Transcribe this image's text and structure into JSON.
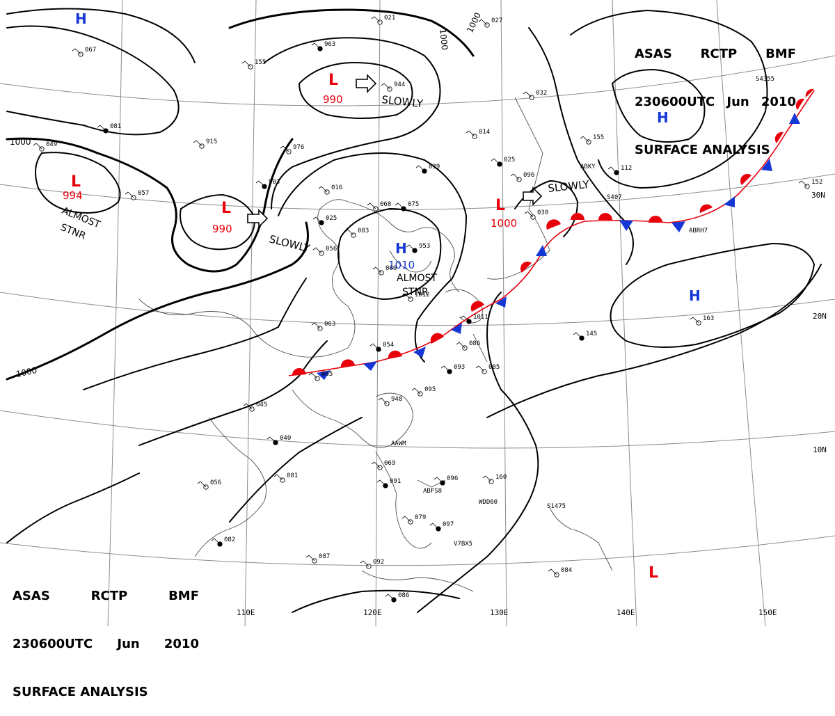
{
  "header": {
    "line1": [
      "ASAS",
      "RCTP",
      "BMF"
    ],
    "line2": [
      "230600UTC",
      "Jun",
      "2010"
    ],
    "line3": "SURFACE ANALYSIS"
  },
  "colors": {
    "low": "#e8000b",
    "high": "#1537d6",
    "isobar": "#000000",
    "graticule": "#8c8c8c",
    "coast": "#505050"
  },
  "longitude_labels": [
    "110E",
    "120E",
    "130E",
    "140E",
    "150E"
  ],
  "latitude_labels": [
    "30N",
    "20N",
    "10N"
  ],
  "isobar_labels": [
    "1000",
    "1000",
    "1000",
    "1000"
  ],
  "pressure_systems": [
    {
      "type": "L",
      "value": "994",
      "note": "ALMOST STNR"
    },
    {
      "type": "L",
      "value": "990",
      "note": "SLOWLY"
    },
    {
      "type": "L",
      "value": "990",
      "note": "SLOWLY"
    },
    {
      "type": "L",
      "value": "1000",
      "note": "SLOWLY"
    },
    {
      "type": "H",
      "value": "1010",
      "note": "ALMOST STNR"
    },
    {
      "type": "H",
      "value": "",
      "note": ""
    },
    {
      "type": "H",
      "value": "",
      "note": ""
    },
    {
      "type": "H",
      "value": "",
      "note": ""
    },
    {
      "type": "L",
      "value": "",
      "note": ""
    }
  ],
  "motion_labels": [
    "SLOWLY",
    "SLOWLY",
    "SLOWLY",
    "ALMOST",
    "STNR",
    "ALMOST",
    "STNR"
  ],
  "front": {
    "type": "stationary"
  },
  "station_labels": [
    "ABKY",
    "S407",
    "ABRH7",
    "V7BX5",
    "WDD60",
    "ABFS8",
    "S1475",
    "AAWM",
    "S4355"
  ],
  "station_values": [
    "963",
    "944",
    "915",
    "903",
    "976",
    "016",
    "025",
    "056",
    "068",
    "075",
    "083",
    "089",
    "039",
    "021",
    "014",
    "025",
    "030",
    "032",
    "112",
    "155",
    "152",
    "145",
    "163",
    "086",
    "093",
    "085",
    "095",
    "096",
    "160",
    "079",
    "091",
    "069",
    "081",
    "082",
    "087",
    "092",
    "086",
    "084",
    "085",
    "054",
    "063",
    "045",
    "040",
    "056",
    "067",
    "081",
    "057",
    "049",
    "953",
    "948",
    "096",
    "097",
    "155",
    "027",
    "1011",
    "1012"
  ]
}
